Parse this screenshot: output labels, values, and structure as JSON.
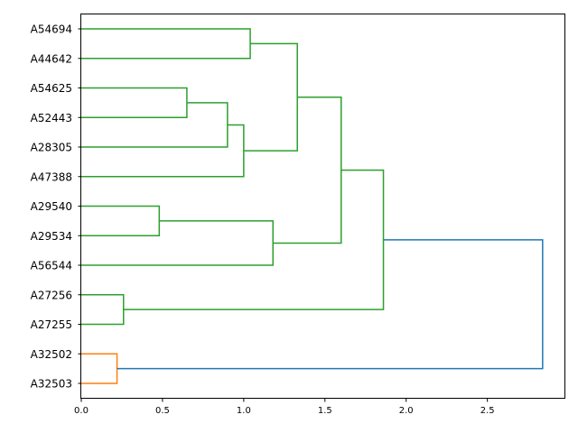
{
  "chart_data": {
    "type": "dendrogram",
    "orientation": "horizontal",
    "title": "",
    "xlabel": "",
    "ylabel": "",
    "xlim": [
      0,
      2.98
    ],
    "x_ticks": [
      0.0,
      0.5,
      1.0,
      1.5,
      2.0,
      2.5
    ],
    "x_tick_labels": [
      "0.0",
      "0.5",
      "1.0",
      "1.5",
      "2.0",
      "2.5"
    ],
    "leaves_top_to_bottom": [
      "A54694",
      "A44642",
      "A54625",
      "A52443",
      "A28305",
      "A47388",
      "A29540",
      "A29534",
      "A56544",
      "A27256",
      "A27255",
      "A32502",
      "A32503"
    ],
    "colors": {
      "green": "#2ca02c",
      "orange": "#ff7f0e",
      "blue": "#1f77b4"
    },
    "merges": [
      {
        "id": "m1",
        "left": "A29540",
        "right": "A29534",
        "height": 0.48,
        "color": "green"
      },
      {
        "id": "m2",
        "left": "A54625",
        "right": "A52443",
        "height": 0.65,
        "color": "green"
      },
      {
        "id": "m3",
        "left": "A32502",
        "right": "A32503",
        "height": 0.22,
        "color": "orange"
      },
      {
        "id": "m4",
        "left": "A27256",
        "right": "A27255",
        "height": 0.26,
        "color": "green"
      },
      {
        "id": "m5",
        "left": "m2",
        "right": "A28305",
        "height": 0.9,
        "color": "green"
      },
      {
        "id": "m6",
        "left": "m5",
        "right": "A47388",
        "height": 1.0,
        "color": "green"
      },
      {
        "id": "m7",
        "left": "A54694",
        "right": "A44642",
        "height": 1.04,
        "color": "green"
      },
      {
        "id": "m8",
        "left": "m1",
        "right": "A56544",
        "height": 1.18,
        "color": "green"
      },
      {
        "id": "m9",
        "left": "m7",
        "right": "m6",
        "height": 1.33,
        "color": "green"
      },
      {
        "id": "m10",
        "left": "m9",
        "right": "m8",
        "height": 1.6,
        "color": "green"
      },
      {
        "id": "m11",
        "left": "m10",
        "right": "m4",
        "height": 1.86,
        "color": "green"
      },
      {
        "id": "m12",
        "left": "m11",
        "right": "m3",
        "height": 2.84,
        "color": "blue"
      }
    ],
    "grid": false,
    "legend": "none"
  }
}
